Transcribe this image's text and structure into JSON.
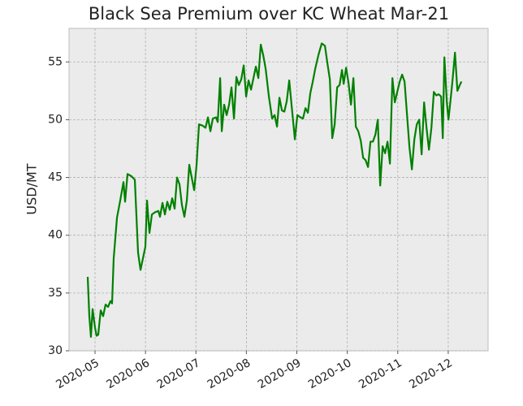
{
  "chart_data": {
    "type": "line",
    "title": "Black Sea Premium over KC Wheat Mar-21",
    "y_label": "USD/MT",
    "xlim": [
      4.485,
      12.79
    ],
    "xticks": [
      {
        "value": 5,
        "label": "2020-05"
      },
      {
        "value": 6,
        "label": "2020-06"
      },
      {
        "value": 7,
        "label": "2020-07"
      },
      {
        "value": 8,
        "label": "2020-08"
      },
      {
        "value": 9,
        "label": "2020-09"
      },
      {
        "value": 10,
        "label": "2020-10"
      },
      {
        "value": 11,
        "label": "2020-11"
      },
      {
        "value": 12,
        "label": "2020-12"
      }
    ],
    "ylim": [
      30,
      57.9
    ],
    "yticks": [
      30,
      35,
      40,
      45,
      50,
      55
    ],
    "grid": true,
    "series": [
      {
        "color": "#008000",
        "x": [
          4.855,
          4.887,
          4.919,
          4.952,
          5.0,
          5.032,
          5.064,
          5.113,
          5.161,
          5.209,
          5.258,
          5.306,
          5.338,
          5.37,
          5.435,
          5.499,
          5.564,
          5.596,
          5.644,
          5.725,
          5.789,
          5.853,
          5.902,
          5.95,
          5.998,
          6.031,
          6.079,
          6.127,
          6.192,
          6.256,
          6.288,
          6.337,
          6.385,
          6.433,
          6.481,
          6.53,
          6.578,
          6.626,
          6.675,
          6.723,
          6.771,
          6.82,
          6.868,
          6.916,
          6.965,
          7.013,
          7.061,
          7.126,
          7.19,
          7.238,
          7.287,
          7.335,
          7.399,
          7.432,
          7.48,
          7.512,
          7.56,
          7.609,
          7.657,
          7.705,
          7.754,
          7.802,
          7.85,
          7.899,
          7.947,
          7.995,
          8.043,
          8.092,
          8.14,
          8.188,
          8.237,
          8.285,
          8.333,
          8.382,
          8.446,
          8.51,
          8.559,
          8.607,
          8.655,
          8.704,
          8.752,
          8.8,
          8.849,
          8.897,
          8.961,
          9.01,
          9.074,
          9.122,
          9.171,
          9.219,
          9.267,
          9.316,
          9.364,
          9.428,
          9.493,
          9.557,
          9.605,
          9.654,
          9.702,
          9.75,
          9.799,
          9.847,
          9.895,
          9.928,
          9.976,
          10.024,
          10.072,
          10.121,
          10.169,
          10.217,
          10.266,
          10.314,
          10.362,
          10.411,
          10.459,
          10.507,
          10.556,
          10.604,
          10.652,
          10.7,
          10.749,
          10.797,
          10.845,
          10.894,
          10.942,
          10.99,
          11.039,
          11.087,
          11.135,
          11.184,
          11.232,
          11.28,
          11.329,
          11.377,
          11.425,
          11.473,
          11.522,
          11.57,
          11.618,
          11.667,
          11.715,
          11.763,
          11.812,
          11.86,
          11.892,
          11.924,
          11.973,
          12.005,
          12.053,
          12.085,
          12.134,
          12.182,
          12.23,
          12.262
        ],
        "values": [
          36.4,
          33,
          31.2,
          33.6,
          32,
          31.3,
          31.4,
          33.5,
          33,
          34,
          33.8,
          34.3,
          34.1,
          38,
          41.5,
          43,
          44.6,
          42.9,
          45.3,
          45.1,
          44.8,
          38.5,
          37,
          38,
          39,
          43,
          40.2,
          41.8,
          42,
          42.1,
          41.6,
          42.8,
          41.8,
          42.9,
          42.2,
          43.2,
          42.3,
          45,
          44.4,
          42.6,
          41.6,
          43,
          46.1,
          45,
          43.9,
          46.1,
          49.6,
          49.5,
          49.3,
          50.2,
          49,
          50.1,
          50.2,
          49.8,
          53.6,
          49,
          51.3,
          50.4,
          51.3,
          52.8,
          50.1,
          53.7,
          53,
          53.5,
          54.7,
          52,
          53.4,
          52.6,
          53.6,
          54.6,
          53.6,
          56.5,
          55.6,
          54.4,
          52,
          50.1,
          50.4,
          49.4,
          51.9,
          50.8,
          50.7,
          51.6,
          53.4,
          51.2,
          48.3,
          50.4,
          50.2,
          50.1,
          51,
          50.6,
          52.3,
          53.3,
          54.4,
          55.6,
          56.6,
          56.4,
          54.9,
          53.5,
          48.4,
          49.6,
          52.8,
          53,
          54.3,
          53.1,
          54.5,
          53.2,
          51.3,
          53.6,
          49.4,
          49,
          48.2,
          46.7,
          46.5,
          45.9,
          48.1,
          48.1,
          48.7,
          50,
          44.3,
          47.7,
          47.1,
          48.1,
          46.2,
          53.6,
          51.5,
          52.4,
          53.3,
          53.9,
          53.3,
          50.4,
          47.6,
          45.7,
          48.3,
          49.6,
          50,
          47,
          51.5,
          49.3,
          47.4,
          49.3,
          52.4,
          52.1,
          52.2,
          52,
          48.4,
          55.4,
          51.5,
          50,
          52,
          53.4,
          55.8,
          52.5,
          53,
          53.3
        ]
      }
    ]
  }
}
